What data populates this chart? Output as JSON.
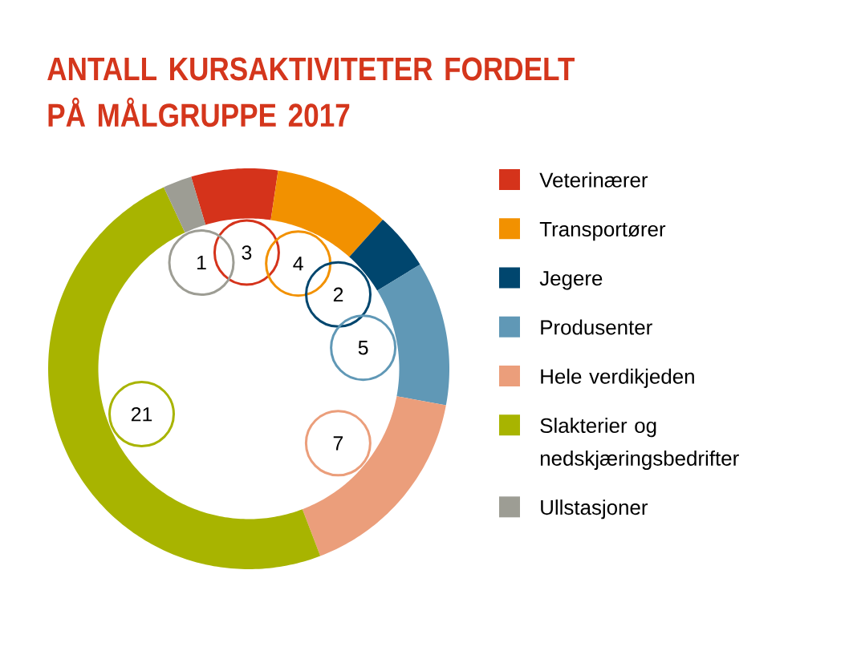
{
  "chart_data": {
    "type": "donut",
    "title": "ANTALL KURSAKTIVITETER FORDELT PÅ MÅLGRUPPE 2017",
    "categories": [
      "Veterinærer",
      "Transportører",
      "Jegere",
      "Produsenter",
      "Hele verdikjeden",
      "Slakterier og nedskjæringsbedrifter",
      "Ullstasjoner"
    ],
    "values": [
      3,
      4,
      2,
      5,
      7,
      21,
      1
    ],
    "colors": [
      "#d5331b",
      "#f29100",
      "#00466e",
      "#6098b6",
      "#eb9e7b",
      "#a8b400",
      "#9d9d94"
    ],
    "data_labels": true,
    "legend": "right"
  }
}
